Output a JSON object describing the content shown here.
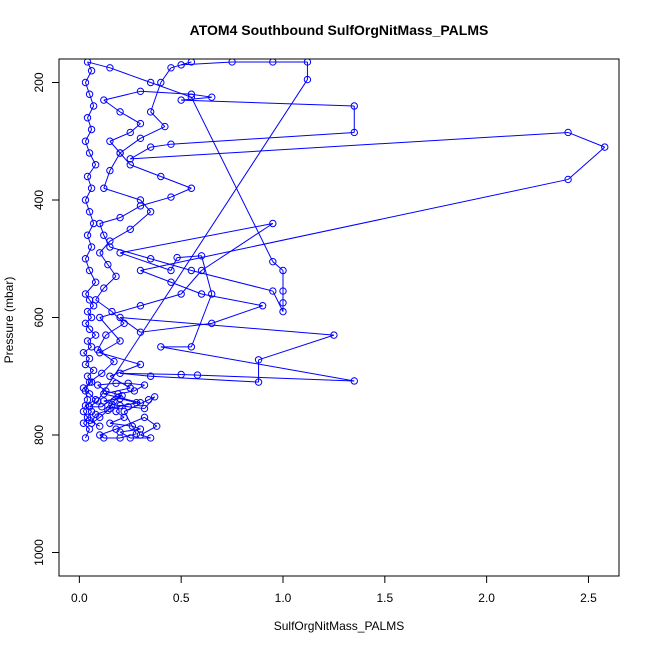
{
  "chart_data": {
    "type": "line",
    "title": "ATOM4 Southbound SulfOrgNitMass_PALMS",
    "xlabel": "SulfOrgNitMass_PALMS",
    "ylabel": "Pressure (mbar)",
    "xlim": [
      -0.1,
      2.65
    ],
    "ylim": [
      1040,
      160
    ],
    "y_reversed": true,
    "x_ticks": [
      0.0,
      0.5,
      1.0,
      1.5,
      2.0,
      2.5
    ],
    "x_tick_labels": [
      "0.0",
      "0.5",
      "1.0",
      "1.5",
      "2.0",
      "2.5"
    ],
    "y_ticks": [
      200,
      400,
      600,
      800,
      1000
    ],
    "y_tick_labels": [
      "200",
      "400",
      "600",
      "800",
      "1000"
    ],
    "grid": false,
    "legend": "none",
    "series": [
      {
        "color": "#0000ff",
        "marker": "open-circle",
        "points": [
          [
            0.03,
            805
          ],
          [
            0.05,
            790
          ],
          [
            0.02,
            780
          ],
          [
            0.04,
            770
          ],
          [
            0.06,
            760
          ],
          [
            0.03,
            750
          ],
          [
            0.08,
            740
          ],
          [
            0.05,
            730
          ],
          [
            0.02,
            720
          ],
          [
            0.06,
            710
          ],
          [
            0.04,
            700
          ],
          [
            0.07,
            690
          ],
          [
            0.03,
            680
          ],
          [
            0.05,
            670
          ],
          [
            0.02,
            660
          ],
          [
            0.06,
            650
          ],
          [
            0.04,
            640
          ],
          [
            0.08,
            630
          ],
          [
            0.05,
            620
          ],
          [
            0.03,
            610
          ],
          [
            0.06,
            600
          ],
          [
            0.04,
            590
          ],
          [
            0.07,
            580
          ],
          [
            0.05,
            570
          ],
          [
            0.03,
            560
          ],
          [
            0.08,
            540
          ],
          [
            0.05,
            520
          ],
          [
            0.03,
            500
          ],
          [
            0.06,
            480
          ],
          [
            0.04,
            460
          ],
          [
            0.07,
            440
          ],
          [
            0.05,
            420
          ],
          [
            0.03,
            400
          ],
          [
            0.06,
            380
          ],
          [
            0.04,
            360
          ],
          [
            0.08,
            340
          ],
          [
            0.05,
            320
          ],
          [
            0.03,
            300
          ],
          [
            0.06,
            280
          ],
          [
            0.04,
            260
          ],
          [
            0.07,
            240
          ],
          [
            0.05,
            220
          ],
          [
            0.03,
            200
          ],
          [
            0.06,
            180
          ],
          [
            0.04,
            165
          ],
          [
            0.15,
            175
          ],
          [
            0.35,
            200
          ],
          [
            0.55,
            225
          ],
          [
            0.95,
            505
          ],
          [
            1.0,
            520
          ],
          [
            1.0,
            555
          ],
          [
            1.0,
            575
          ],
          [
            1.0,
            590
          ],
          [
            0.95,
            555
          ],
          [
            0.55,
            520
          ],
          [
            0.35,
            500
          ],
          [
            0.15,
            480
          ],
          [
            0.12,
            460
          ],
          [
            0.1,
            440
          ],
          [
            0.2,
            430
          ],
          [
            0.3,
            410
          ],
          [
            0.45,
            395
          ],
          [
            0.55,
            380
          ],
          [
            0.4,
            360
          ],
          [
            0.25,
            340
          ],
          [
            0.2,
            320
          ],
          [
            0.15,
            300
          ],
          [
            0.25,
            285
          ],
          [
            0.3,
            270
          ],
          [
            0.2,
            250
          ],
          [
            0.12,
            230
          ],
          [
            0.3,
            215
          ],
          [
            0.55,
            220
          ],
          [
            0.65,
            225
          ],
          [
            0.5,
            230
          ],
          [
            1.35,
            240
          ],
          [
            1.35,
            285
          ],
          [
            0.45,
            305
          ],
          [
            0.35,
            310
          ],
          [
            0.25,
            330
          ],
          [
            2.4,
            285
          ],
          [
            2.58,
            310
          ],
          [
            2.4,
            365
          ],
          [
            0.3,
            520
          ],
          [
            0.45,
            540
          ],
          [
            0.6,
            560
          ],
          [
            0.9,
            580
          ],
          [
            0.65,
            610
          ],
          [
            0.3,
            625
          ],
          [
            0.2,
            600
          ],
          [
            1.25,
            630
          ],
          [
            0.88,
            672
          ],
          [
            0.88,
            710
          ],
          [
            0.35,
            700
          ],
          [
            0.2,
            695
          ],
          [
            0.5,
            697
          ],
          [
            0.58,
            698
          ],
          [
            1.35,
            708
          ],
          [
            0.4,
            650
          ],
          [
            0.55,
            650
          ],
          [
            0.65,
            560
          ],
          [
            0.6,
            495
          ],
          [
            0.48,
            498
          ],
          [
            0.45,
            520
          ],
          [
            0.2,
            490
          ],
          [
            0.95,
            440
          ],
          [
            0.6,
            520
          ],
          [
            0.5,
            560
          ],
          [
            0.3,
            580
          ],
          [
            0.1,
            600
          ],
          [
            0.2,
            640
          ],
          [
            0.1,
            660
          ],
          [
            0.3,
            680
          ],
          [
            0.15,
            700
          ],
          [
            0.25,
            720
          ],
          [
            0.12,
            730
          ],
          [
            0.3,
            745
          ],
          [
            0.2,
            750
          ],
          [
            0.18,
            760
          ],
          [
            0.22,
            770
          ],
          [
            0.15,
            780
          ],
          [
            0.26,
            785
          ],
          [
            0.3,
            790
          ],
          [
            0.2,
            795
          ],
          [
            0.25,
            805
          ],
          [
            0.35,
            805
          ],
          [
            0.3,
            800
          ],
          [
            0.38,
            785
          ],
          [
            0.32,
            770
          ],
          [
            0.18,
            790
          ],
          [
            0.1,
            800
          ],
          [
            0.12,
            805
          ],
          [
            0.2,
            805
          ],
          [
            0.28,
            798
          ],
          [
            0.22,
            760
          ],
          [
            0.34,
            740
          ],
          [
            0.37,
            735
          ],
          [
            0.32,
            755
          ],
          [
            0.24,
            752
          ],
          [
            0.16,
            748
          ],
          [
            0.12,
            742
          ],
          [
            0.2,
            738
          ],
          [
            0.28,
            745
          ],
          [
            0.15,
            755
          ],
          [
            0.1,
            770
          ],
          [
            0.06,
            780
          ],
          [
            0.08,
            765
          ],
          [
            0.14,
            758
          ],
          [
            0.17,
            742
          ],
          [
            0.21,
            733
          ],
          [
            0.13,
            725
          ],
          [
            0.09,
            715
          ],
          [
            0.18,
            712
          ],
          [
            0.24,
            712
          ],
          [
            0.32,
            715
          ],
          [
            0.27,
            725
          ],
          [
            0.19,
            730
          ],
          [
            0.11,
            752
          ],
          [
            0.05,
            752
          ],
          [
            0.09,
            742
          ],
          [
            1.12,
            195
          ],
          [
            1.12,
            165
          ],
          [
            0.95,
            165
          ],
          [
            0.75,
            165
          ],
          [
            0.5,
            170
          ],
          [
            0.55,
            165
          ],
          [
            0.45,
            175
          ],
          [
            0.4,
            200
          ],
          [
            0.35,
            250
          ],
          [
            0.42,
            275
          ],
          [
            0.3,
            295
          ],
          [
            0.2,
            320
          ],
          [
            0.15,
            350
          ],
          [
            0.12,
            380
          ],
          [
            0.3,
            400
          ],
          [
            0.35,
            420
          ],
          [
            0.25,
            450
          ],
          [
            0.15,
            470
          ],
          [
            0.1,
            490
          ],
          [
            0.14,
            510
          ],
          [
            0.18,
            530
          ],
          [
            0.12,
            550
          ],
          [
            0.08,
            570
          ],
          [
            0.16,
            590
          ],
          [
            0.22,
            610
          ],
          [
            0.13,
            630
          ],
          [
            0.09,
            655
          ],
          [
            0.17,
            675
          ],
          [
            0.11,
            695
          ],
          [
            0.05,
            710
          ],
          [
            0.03,
            725
          ],
          [
            0.04,
            740
          ],
          [
            0.02,
            760
          ],
          [
            0.05,
            775
          ],
          [
            0.1,
            785
          ]
        ]
      }
    ]
  }
}
